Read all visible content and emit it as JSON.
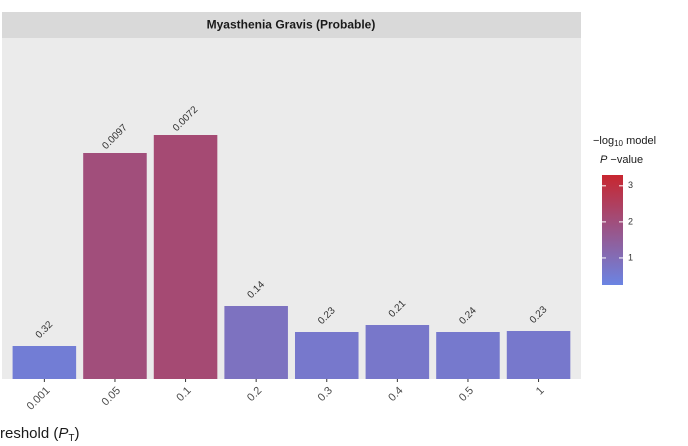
{
  "chart_data": {
    "type": "bar",
    "title": "Myasthenia Gravis (Probable)",
    "categories": [
      "0.001",
      "0.05",
      "0.1",
      "0.2",
      "0.3",
      "0.4",
      "0.5",
      "1"
    ],
    "values": [
      33,
      226,
      244,
      73,
      47,
      54,
      47,
      48
    ],
    "bar_labels": [
      "0.32",
      "0.0097",
      "0.0072",
      "0.14",
      "0.23",
      "0.21",
      "0.24",
      "0.23"
    ],
    "color_values": [
      0.49,
      2.01,
      2.14,
      0.85,
      0.64,
      0.68,
      0.62,
      0.64
    ],
    "color_scale": {
      "title_parts": [
        "−log",
        "10",
        " model",
        "P",
        " −value"
      ],
      "lim": [
        0.25,
        3.3
      ],
      "ticks": [
        1,
        2,
        3
      ],
      "low": "#6b84e3",
      "high": "#c8262f"
    },
    "x_label_parts": [
      "reshold (",
      "P",
      "T",
      ")"
    ]
  }
}
